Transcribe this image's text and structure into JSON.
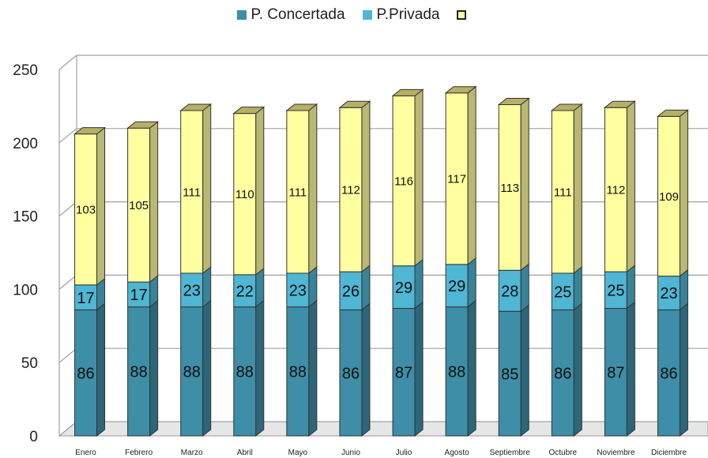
{
  "chart_data": {
    "type": "bar",
    "stacked": true,
    "categories": [
      "Enero",
      "Febrero",
      "Marzo",
      "Abril",
      "Mayo",
      "Junio",
      "Julio",
      "Agosto",
      "Septiembre",
      "Octubre",
      "Noviembre",
      "Diciembre"
    ],
    "series": [
      {
        "name": "P. Concertada",
        "color": "#3d8ea6",
        "values": [
          86,
          88,
          88,
          88,
          88,
          86,
          87,
          88,
          85,
          86,
          87,
          86
        ]
      },
      {
        "name": "P.Privada",
        "color": "#4fb6d3",
        "values": [
          17,
          17,
          23,
          22,
          23,
          26,
          29,
          29,
          28,
          25,
          25,
          23
        ]
      },
      {
        "name": "",
        "color": "#ffffa0",
        "values": [
          103,
          105,
          111,
          110,
          111,
          112,
          116,
          117,
          113,
          111,
          112,
          109
        ]
      }
    ],
    "ylim": [
      0,
      250
    ],
    "yticks": [
      0,
      50,
      100,
      150,
      200,
      250
    ],
    "grid": true,
    "legend_position": "top-center"
  }
}
